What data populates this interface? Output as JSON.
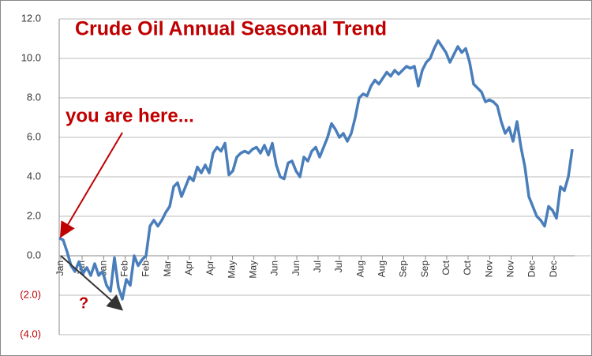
{
  "chart_data": {
    "type": "line",
    "title": "Crude Oil Annual Seasonal Trend",
    "annotations": [
      "you are here...",
      "?"
    ],
    "ylim": [
      -4,
      12
    ],
    "yticks": [
      {
        "value": 12,
        "label": "12.0"
      },
      {
        "value": 10,
        "label": "10.0"
      },
      {
        "value": 8,
        "label": "8.0"
      },
      {
        "value": 6,
        "label": "6.0"
      },
      {
        "value": 4,
        "label": "4.0"
      },
      {
        "value": 2,
        "label": "2.0"
      },
      {
        "value": 0,
        "label": "0.0"
      },
      {
        "value": -2,
        "label": "(2.0)"
      },
      {
        "value": -4,
        "label": "(4.0)"
      }
    ],
    "negative_label_color": "#c00000",
    "xlim": [
      0,
      130
    ],
    "xticks": [
      {
        "value": 0.4,
        "label": "Jan"
      },
      {
        "value": 5.8,
        "label": "Jan"
      },
      {
        "value": 11.3,
        "label": "Jan"
      },
      {
        "value": 16.7,
        "label": "Feb"
      },
      {
        "value": 22.1,
        "label": "Feb"
      },
      {
        "value": 27.6,
        "label": "Mar"
      },
      {
        "value": 33,
        "label": "Apr"
      },
      {
        "value": 38.4,
        "label": "Apr"
      },
      {
        "value": 43.9,
        "label": "May"
      },
      {
        "value": 49.3,
        "label": "May"
      },
      {
        "value": 54.7,
        "label": "Jun"
      },
      {
        "value": 60.2,
        "label": "Jun"
      },
      {
        "value": 65.6,
        "label": "Jul"
      },
      {
        "value": 71,
        "label": "Jul"
      },
      {
        "value": 76.5,
        "label": "Aug"
      },
      {
        "value": 81.9,
        "label": "Aug"
      },
      {
        "value": 87.3,
        "label": "Sep"
      },
      {
        "value": 92.8,
        "label": "Sep"
      },
      {
        "value": 98.2,
        "label": "Oct"
      },
      {
        "value": 103.6,
        "label": "Oct"
      },
      {
        "value": 109.1,
        "label": "Nov"
      },
      {
        "value": 114.5,
        "label": "Nov"
      },
      {
        "value": 119.9,
        "label": "Dec"
      },
      {
        "value": 125.4,
        "label": "Dec"
      }
    ],
    "grid": true,
    "series": [
      {
        "color": "#4a7ebb",
        "values": [
          0.9,
          0.8,
          0.2,
          -0.5,
          -0.8,
          -0.3,
          -0.9,
          -0.6,
          -1.0,
          -0.4,
          -1.0,
          -0.8,
          -1.5,
          -1.8,
          -0.1,
          -1.6,
          -2.2,
          -1.2,
          -1.5,
          0.0,
          -0.5,
          -0.2,
          0.0,
          1.5,
          1.8,
          1.5,
          1.8,
          2.2,
          2.5,
          3.5,
          3.7,
          3.0,
          3.5,
          4.0,
          3.8,
          4.5,
          4.2,
          4.6,
          4.2,
          5.2,
          5.5,
          5.3,
          5.7,
          4.1,
          4.3,
          5.0,
          5.2,
          5.3,
          5.2,
          5.4,
          5.5,
          5.2,
          5.6,
          5.1,
          5.7,
          4.6,
          4.0,
          3.9,
          4.7,
          4.8,
          4.3,
          4.0,
          5.0,
          4.8,
          5.3,
          5.5,
          5.0,
          5.5,
          6.0,
          6.7,
          6.4,
          6.0,
          6.2,
          5.8,
          6.2,
          7.0,
          8.0,
          8.2,
          8.1,
          8.6,
          8.9,
          8.7,
          9.0,
          9.3,
          9.1,
          9.4,
          9.2,
          9.4,
          9.6,
          9.5,
          9.6,
          8.6,
          9.4,
          9.8,
          10.0,
          10.5,
          10.9,
          10.6,
          10.3,
          9.8,
          10.2,
          10.6,
          10.3,
          10.5,
          9.8,
          8.7,
          8.5,
          8.3,
          7.8,
          7.9,
          7.8,
          7.6,
          6.8,
          6.2,
          6.5,
          5.8,
          6.8,
          5.5,
          4.5,
          3.0,
          2.5,
          2.0,
          1.8,
          1.5,
          2.5,
          2.3,
          1.9,
          3.5,
          3.3,
          4.0,
          5.4
        ]
      }
    ]
  }
}
